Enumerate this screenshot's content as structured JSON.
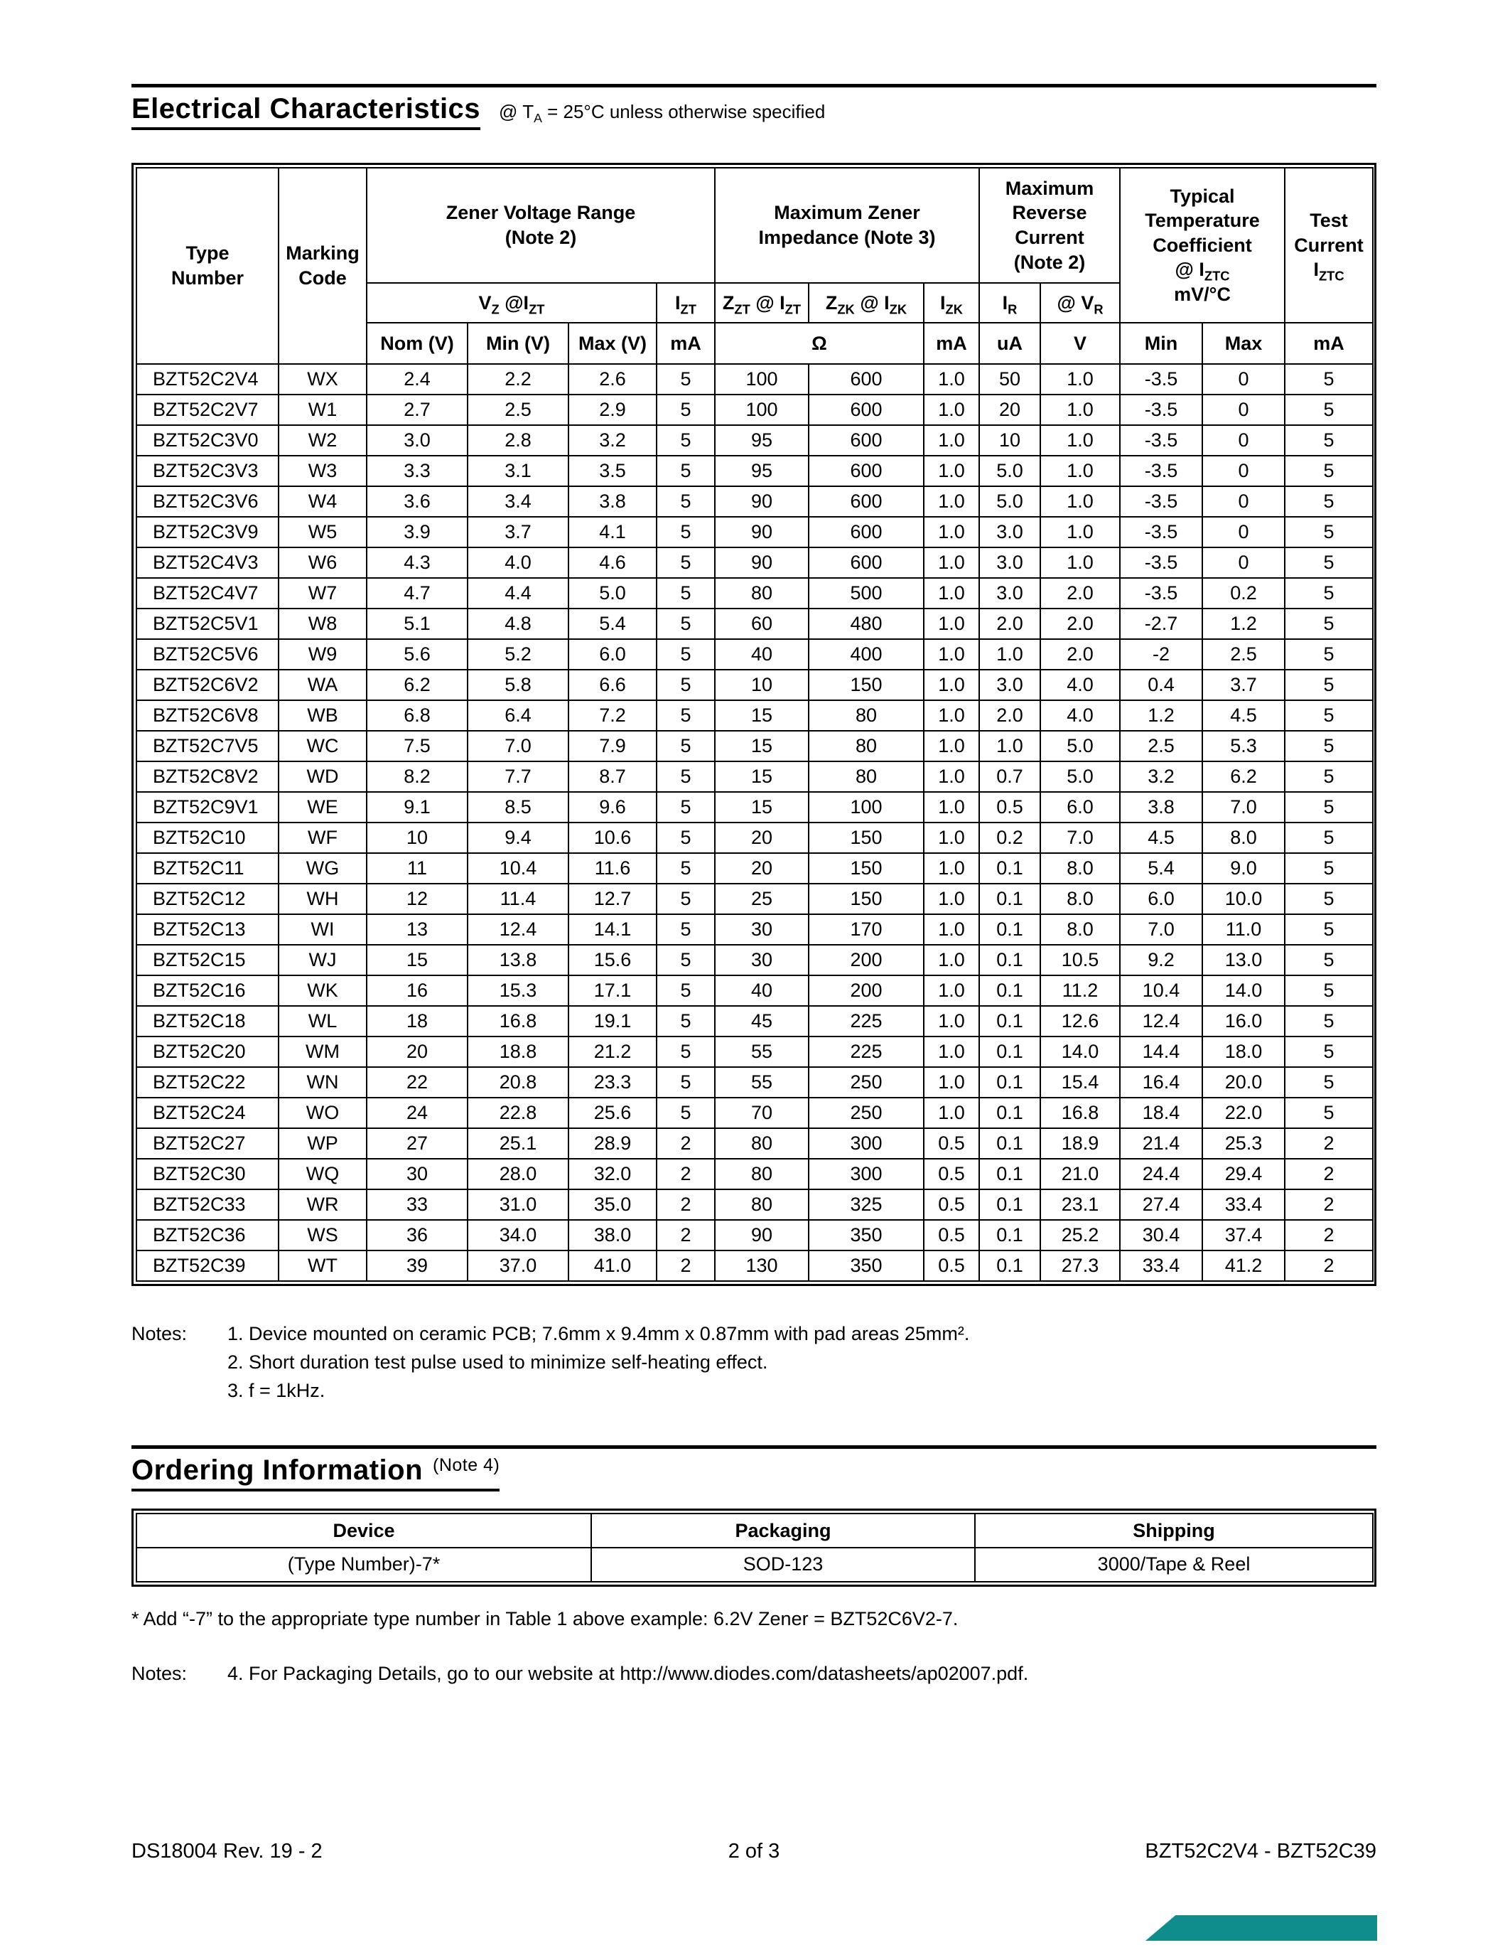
{
  "electrical": {
    "title": "Electrical Characteristics",
    "condition": "@ T~A~ = 25°C unless otherwise specified",
    "table": {
      "h_type": "Type\nNumber",
      "h_marking": "Marking\nCode",
      "h_vz_range": "Zener Voltage Range\n(Note 2)",
      "h_impedance": "Maximum Zener\nImpedance (Note 3)",
      "h_reverse": "Maximum\nReverse\nCurrent\n(Note 2)",
      "h_tempco": "Typical\nTemperature\nCoefficient\n@ I~ZTC~\nmV/°C",
      "h_test": "Test\nCurrent\nI~ZTC~",
      "h_vz": "V~Z~ @I~ZT~",
      "h_izt": "I~ZT~",
      "h_zzt": "Z~ZT~ @ I~ZT~",
      "h_zzk": "Z~ZK~ @ I~ZK~",
      "h_izk": "I~ZK~",
      "h_ir": "I~R~",
      "h_vr": "@ V~R~",
      "u_nom": "Nom (V)",
      "u_min": "Min (V)",
      "u_max": "Max (V)",
      "u_ma1": "mA",
      "u_ohm": "Ω",
      "u_ma2": "mA",
      "u_ua": "uA",
      "u_v": "V",
      "u_tmin": "Min",
      "u_tmax": "Max",
      "u_ma3": "mA",
      "rows": [
        [
          "BZT52C2V4",
          "WX",
          "2.4",
          "2.2",
          "2.6",
          "5",
          "100",
          "600",
          "1.0",
          "50",
          "1.0",
          "-3.5",
          "0",
          "5"
        ],
        [
          "BZT52C2V7",
          "W1",
          "2.7",
          "2.5",
          "2.9",
          "5",
          "100",
          "600",
          "1.0",
          "20",
          "1.0",
          "-3.5",
          "0",
          "5"
        ],
        [
          "BZT52C3V0",
          "W2",
          "3.0",
          "2.8",
          "3.2",
          "5",
          "95",
          "600",
          "1.0",
          "10",
          "1.0",
          "-3.5",
          "0",
          "5"
        ],
        [
          "BZT52C3V3",
          "W3",
          "3.3",
          "3.1",
          "3.5",
          "5",
          "95",
          "600",
          "1.0",
          "5.0",
          "1.0",
          "-3.5",
          "0",
          "5"
        ],
        [
          "BZT52C3V6",
          "W4",
          "3.6",
          "3.4",
          "3.8",
          "5",
          "90",
          "600",
          "1.0",
          "5.0",
          "1.0",
          "-3.5",
          "0",
          "5"
        ],
        [
          "BZT52C3V9",
          "W5",
          "3.9",
          "3.7",
          "4.1",
          "5",
          "90",
          "600",
          "1.0",
          "3.0",
          "1.0",
          "-3.5",
          "0",
          "5"
        ],
        [
          "BZT52C4V3",
          "W6",
          "4.3",
          "4.0",
          "4.6",
          "5",
          "90",
          "600",
          "1.0",
          "3.0",
          "1.0",
          "-3.5",
          "0",
          "5"
        ],
        [
          "BZT52C4V7",
          "W7",
          "4.7",
          "4.4",
          "5.0",
          "5",
          "80",
          "500",
          "1.0",
          "3.0",
          "2.0",
          "-3.5",
          "0.2",
          "5"
        ],
        [
          "BZT52C5V1",
          "W8",
          "5.1",
          "4.8",
          "5.4",
          "5",
          "60",
          "480",
          "1.0",
          "2.0",
          "2.0",
          "-2.7",
          "1.2",
          "5"
        ],
        [
          "BZT52C5V6",
          "W9",
          "5.6",
          "5.2",
          "6.0",
          "5",
          "40",
          "400",
          "1.0",
          "1.0",
          "2.0",
          "-2",
          "2.5",
          "5"
        ],
        [
          "BZT52C6V2",
          "WA",
          "6.2",
          "5.8",
          "6.6",
          "5",
          "10",
          "150",
          "1.0",
          "3.0",
          "4.0",
          "0.4",
          "3.7",
          "5"
        ],
        [
          "BZT52C6V8",
          "WB",
          "6.8",
          "6.4",
          "7.2",
          "5",
          "15",
          "80",
          "1.0",
          "2.0",
          "4.0",
          "1.2",
          "4.5",
          "5"
        ],
        [
          "BZT52C7V5",
          "WC",
          "7.5",
          "7.0",
          "7.9",
          "5",
          "15",
          "80",
          "1.0",
          "1.0",
          "5.0",
          "2.5",
          "5.3",
          "5"
        ],
        [
          "BZT52C8V2",
          "WD",
          "8.2",
          "7.7",
          "8.7",
          "5",
          "15",
          "80",
          "1.0",
          "0.7",
          "5.0",
          "3.2",
          "6.2",
          "5"
        ],
        [
          "BZT52C9V1",
          "WE",
          "9.1",
          "8.5",
          "9.6",
          "5",
          "15",
          "100",
          "1.0",
          "0.5",
          "6.0",
          "3.8",
          "7.0",
          "5"
        ],
        [
          "BZT52C10",
          "WF",
          "10",
          "9.4",
          "10.6",
          "5",
          "20",
          "150",
          "1.0",
          "0.2",
          "7.0",
          "4.5",
          "8.0",
          "5"
        ],
        [
          "BZT52C11",
          "WG",
          "11",
          "10.4",
          "11.6",
          "5",
          "20",
          "150",
          "1.0",
          "0.1",
          "8.0",
          "5.4",
          "9.0",
          "5"
        ],
        [
          "BZT52C12",
          "WH",
          "12",
          "11.4",
          "12.7",
          "5",
          "25",
          "150",
          "1.0",
          "0.1",
          "8.0",
          "6.0",
          "10.0",
          "5"
        ],
        [
          "BZT52C13",
          "WI",
          "13",
          "12.4",
          "14.1",
          "5",
          "30",
          "170",
          "1.0",
          "0.1",
          "8.0",
          "7.0",
          "11.0",
          "5"
        ],
        [
          "BZT52C15",
          "WJ",
          "15",
          "13.8",
          "15.6",
          "5",
          "30",
          "200",
          "1.0",
          "0.1",
          "10.5",
          "9.2",
          "13.0",
          "5"
        ],
        [
          "BZT52C16",
          "WK",
          "16",
          "15.3",
          "17.1",
          "5",
          "40",
          "200",
          "1.0",
          "0.1",
          "11.2",
          "10.4",
          "14.0",
          "5"
        ],
        [
          "BZT52C18",
          "WL",
          "18",
          "16.8",
          "19.1",
          "5",
          "45",
          "225",
          "1.0",
          "0.1",
          "12.6",
          "12.4",
          "16.0",
          "5"
        ],
        [
          "BZT52C20",
          "WM",
          "20",
          "18.8",
          "21.2",
          "5",
          "55",
          "225",
          "1.0",
          "0.1",
          "14.0",
          "14.4",
          "18.0",
          "5"
        ],
        [
          "BZT52C22",
          "WN",
          "22",
          "20.8",
          "23.3",
          "5",
          "55",
          "250",
          "1.0",
          "0.1",
          "15.4",
          "16.4",
          "20.0",
          "5"
        ],
        [
          "BZT52C24",
          "WO",
          "24",
          "22.8",
          "25.6",
          "5",
          "70",
          "250",
          "1.0",
          "0.1",
          "16.8",
          "18.4",
          "22.0",
          "5"
        ],
        [
          "BZT52C27",
          "WP",
          "27",
          "25.1",
          "28.9",
          "2",
          "80",
          "300",
          "0.5",
          "0.1",
          "18.9",
          "21.4",
          "25.3",
          "2"
        ],
        [
          "BZT52C30",
          "WQ",
          "30",
          "28.0",
          "32.0",
          "2",
          "80",
          "300",
          "0.5",
          "0.1",
          "21.0",
          "24.4",
          "29.4",
          "2"
        ],
        [
          "BZT52C33",
          "WR",
          "33",
          "31.0",
          "35.0",
          "2",
          "80",
          "325",
          "0.5",
          "0.1",
          "23.1",
          "27.4",
          "33.4",
          "2"
        ],
        [
          "BZT52C36",
          "WS",
          "36",
          "34.0",
          "38.0",
          "2",
          "90",
          "350",
          "0.5",
          "0.1",
          "25.2",
          "30.4",
          "37.4",
          "2"
        ],
        [
          "BZT52C39",
          "WT",
          "39",
          "37.0",
          "41.0",
          "2",
          "130",
          "350",
          "0.5",
          "0.1",
          "27.3",
          "33.4",
          "41.2",
          "2"
        ]
      ]
    },
    "notes_label": "Notes:",
    "notes": [
      "1. Device mounted on ceramic PCB; 7.6mm x 9.4mm x 0.87mm with pad areas 25mm².",
      "2. Short duration test pulse used to minimize self-heating effect.",
      "3. f = 1kHz."
    ]
  },
  "ordering": {
    "title": "Ordering Information",
    "note_ref": "(Note 4)",
    "headers": [
      "Device",
      "Packaging",
      "Shipping"
    ],
    "row": [
      "(Type Number)-7*",
      "SOD-123",
      "3000/Tape & Reel"
    ],
    "footnote": "* Add “-7” to the appropriate type number in Table 1 above example: 6.2V Zener = BZT52C6V2-7.",
    "notes_label": "Notes:",
    "note4_num": "4.",
    "note4_text": "For Packaging Details, go to our website at ",
    "note4_url": "http://www.diodes.com/datasheets/ap02007.pdf",
    "note4_suffix": "."
  },
  "footer": {
    "doc_id": "DS18004 Rev. 19 - 2",
    "page": "2 of 3",
    "part_range": "BZT52C2V4 - BZT52C39"
  },
  "colors": {
    "accent_teal": "#0f8c8c"
  }
}
